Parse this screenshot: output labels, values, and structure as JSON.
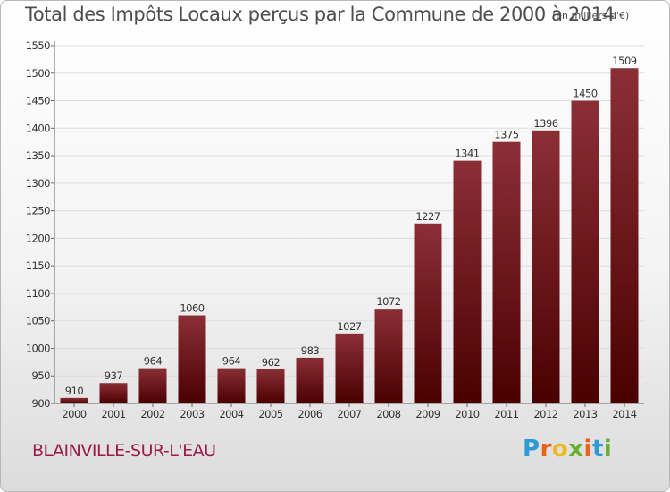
{
  "title": "Total des Impôts Locaux perçus par la Commune de 2000 à 2014",
  "subtitle": "(en milliers d'€)",
  "commune": "BLAINVILLE-SUR-L'EAU",
  "logo": {
    "letters": [
      "P",
      "r",
      "o",
      "x",
      "i",
      "t",
      "i"
    ],
    "colors": [
      "#2e9ad6",
      "#e8611d",
      "#f2b51a",
      "#64b22f",
      "#e8611d",
      "#2e9ad6",
      "#64b22f"
    ]
  },
  "colors": {
    "bar_top": "#8b2f36",
    "bar_bottom": "#4a0000",
    "grid": "#dddddd",
    "axis": "#666666",
    "text": "#333333"
  },
  "chart_data": {
    "type": "bar",
    "categories": [
      "2000",
      "2001",
      "2002",
      "2003",
      "2004",
      "2005",
      "2006",
      "2007",
      "2008",
      "2009",
      "2010",
      "2011",
      "2012",
      "2013",
      "2014"
    ],
    "values": [
      910,
      937,
      964,
      1060,
      964,
      962,
      983,
      1027,
      1072,
      1227,
      1341,
      1375,
      1396,
      1450,
      1509
    ],
    "data_labels": [
      "910",
      "937",
      "964",
      "1060",
      "964",
      "962",
      "983",
      "1027",
      "1072",
      "1227",
      "1341",
      "1375",
      "1396",
      "1450",
      "1509"
    ],
    "ylim": [
      900,
      1550
    ],
    "yticks": [
      900,
      950,
      1000,
      1050,
      1100,
      1150,
      1200,
      1250,
      1300,
      1350,
      1400,
      1450,
      1500,
      1550
    ],
    "grid": true,
    "legend": "none"
  }
}
